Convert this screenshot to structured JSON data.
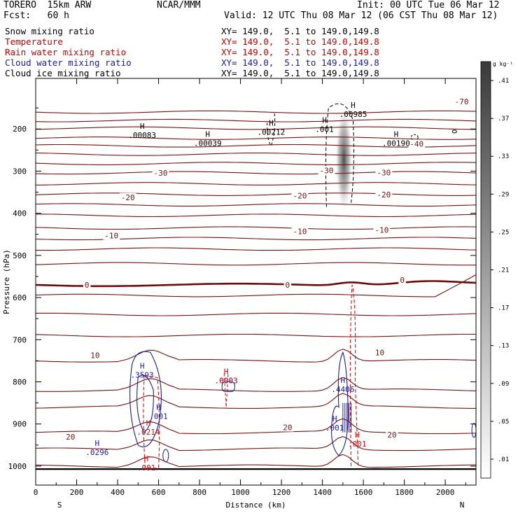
{
  "header": {
    "model": "TORERO  15km ARW",
    "center": "NCAR/MMM",
    "init": "Init: 00 UTC Tue 06 Mar 12",
    "fcst": "Fcst:   60 h",
    "valid": "Valid: 12 UTC Thu 08 Mar 12 (06 CST Thu 08 Mar 12)"
  },
  "legend": [
    {
      "name": "Snow mixing ratio",
      "color": "#000000",
      "xy": "XY= 149.0,  5.1 to 149.0,149.8"
    },
    {
      "name": "Temperature",
      "color": "#cc0000",
      "xy": "XY= 149.0,  5.1 to 149.0,149.8"
    },
    {
      "name": "Rain water mixing ratio",
      "color": "#cc0000",
      "xy": "XY= 149.0,  5.1 to 149.0,149.8"
    },
    {
      "name": "Cloud water mixing ratio",
      "color": "#1a1aaa",
      "xy": "XY= 149.0,  5.1 to 149.0,149.8"
    },
    {
      "name": "Cloud ice mixing ratio",
      "color": "#000000",
      "xy": "XY= 149.0,  5.1 to 149.0,149.8"
    }
  ],
  "colors": {
    "temperature": "#7a1010",
    "zero_isotherm": "#6a0a0a",
    "rain": "#dd1111",
    "cloud_water": "#1a1aaa",
    "snow": "#000000",
    "axis": "#000000"
  },
  "chart_data": {
    "type": "contour",
    "xlabel": "Distance (km)",
    "ylabel": "Pressure (hPa)",
    "xlim": [
      0,
      2150
    ],
    "ylim": [
      1045,
      80
    ],
    "x_ticks": [
      0,
      200,
      400,
      600,
      800,
      1000,
      1200,
      1400,
      1600,
      1800,
      2000
    ],
    "y_ticks": [
      200,
      300,
      400,
      500,
      600,
      700,
      800,
      900,
      1000
    ],
    "x_end_labels": [
      "S",
      "N"
    ],
    "y_log": false,
    "colorbar": {
      "unit": "g kg⁻¹",
      "ticks": [
        ".01",
        ".05",
        ".09",
        ".13",
        ".17",
        ".21",
        ".25",
        ".29",
        ".33",
        ".37",
        ".41"
      ],
      "values": [
        0.01,
        0.05,
        0.09,
        0.13,
        0.17,
        0.21,
        0.25,
        0.29,
        0.33,
        0.37,
        0.41
      ]
    },
    "temperature_isotherm_labels": [
      {
        "value": "-70",
        "x": 2080,
        "p": 135
      },
      {
        "value": "-40",
        "x": 1860,
        "p": 235
      },
      {
        "value": "-30",
        "x": 610,
        "p": 304
      },
      {
        "value": "-30",
        "x": 1420,
        "p": 298
      },
      {
        "value": "-30",
        "x": 1700,
        "p": 303
      },
      {
        "value": "-20",
        "x": 450,
        "p": 362
      },
      {
        "value": "-20",
        "x": 1290,
        "p": 358
      },
      {
        "value": "-20",
        "x": 1700,
        "p": 356
      },
      {
        "value": "-10",
        "x": 370,
        "p": 453
      },
      {
        "value": "-10",
        "x": 1290,
        "p": 443
      },
      {
        "value": "-10",
        "x": 1690,
        "p": 440
      },
      {
        "value": "0",
        "x": 250,
        "p": 570
      },
      {
        "value": "0",
        "x": 1230,
        "p": 570
      },
      {
        "value": "0",
        "x": 1790,
        "p": 558
      },
      {
        "value": "10",
        "x": 290,
        "p": 737
      },
      {
        "value": "10",
        "x": 1680,
        "p": 730
      },
      {
        "value": "20",
        "x": 170,
        "p": 930
      },
      {
        "value": "20",
        "x": 1230,
        "p": 908
      },
      {
        "value": "20",
        "x": 1740,
        "p": 925
      }
    ],
    "maxima": [
      {
        "field": "snow",
        "label": ".00083",
        "x": 520,
        "p": 213
      },
      {
        "field": "snow",
        "label": ".00039",
        "x": 840,
        "p": 232
      },
      {
        "field": "snow",
        "label": ".00212",
        "x": 1150,
        "p": 205
      },
      {
        "field": "snow",
        "label": ".00985",
        "x": 1550,
        "p": 163
      },
      {
        "field": "snow",
        "label": ".001",
        "x": 1410,
        "p": 199
      },
      {
        "field": "snow",
        "label": ".00190",
        "x": 1760,
        "p": 232
      },
      {
        "field": "cloud_water",
        "label": ".3593",
        "x": 520,
        "p": 782
      },
      {
        "field": "cloud_water",
        "label": ".001",
        "x": 600,
        "p": 880
      },
      {
        "field": "cloud_water",
        "label": ".0296",
        "x": 300,
        "p": 965
      },
      {
        "field": "cloud_water",
        "label": ".4406",
        "x": 1500,
        "p": 816
      },
      {
        "field": "cloud_water",
        "label": ".001",
        "x": 1460,
        "p": 907
      },
      {
        "field": "cloud_water",
        "label": ".0003",
        "x": 930,
        "p": 795
      },
      {
        "field": "rain",
        "label": ".0003",
        "x": 930,
        "p": 795
      },
      {
        "field": "rain",
        "label": ".0214",
        "x": 550,
        "p": 917
      },
      {
        "field": "rain",
        "label": ".001",
        "x": 540,
        "p": 1002
      },
      {
        "field": "rain",
        "label": ".001",
        "x": 1570,
        "p": 945
      }
    ]
  }
}
